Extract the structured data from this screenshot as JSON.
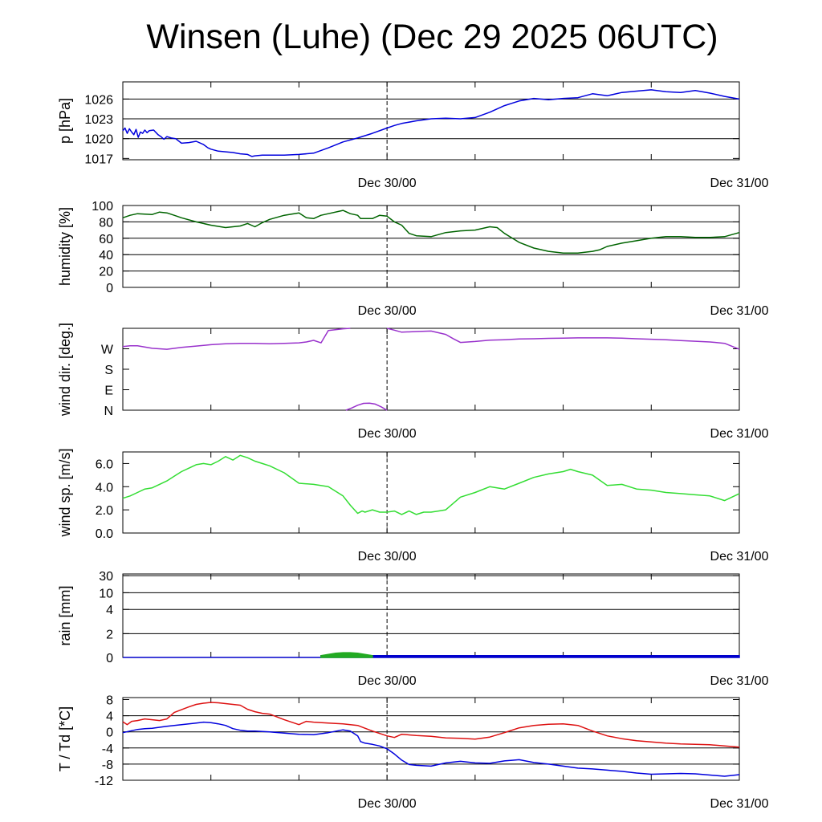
{
  "title": "Winsen (Luhe) (Dec 29 2025 06UTC)",
  "x_axis": {
    "start": "Dec 29 06UTC",
    "end": "Dec 31 00UTC",
    "range_hours": [
      0,
      42
    ],
    "tick_hours": [
      0,
      6,
      12,
      18,
      24,
      30,
      36,
      42
    ],
    "labels": [
      {
        "hour": 18,
        "text": "Dec 30/00"
      },
      {
        "hour": 42,
        "text": "Dec 31/00"
      }
    ],
    "marker_hour": 18
  },
  "chart_data": [
    {
      "type": "line",
      "id": "pressure",
      "ylabel": "p [hPa]",
      "ylim": [
        1016.8,
        1028.6
      ],
      "yticks": [
        1017,
        1020,
        1023,
        1026
      ],
      "ytick_labels": [
        "1017",
        "1020",
        "1023",
        "1026"
      ],
      "gridlines": [
        1020,
        1023,
        1026
      ],
      "series": [
        {
          "color": "#0000dd",
          "x": [
            0,
            0.15,
            0.3,
            0.45,
            0.6,
            0.75,
            0.9,
            1.05,
            1.2,
            1.35,
            1.5,
            1.65,
            1.8,
            2.1,
            2.4,
            2.6,
            2.8,
            3,
            3.3,
            3.6,
            4,
            4.5,
            5,
            5.5,
            5.8,
            6,
            6.5,
            7,
            7.5,
            8,
            8.5,
            8.8,
            9,
            9.5,
            10,
            11,
            12,
            13,
            14,
            15,
            16,
            17,
            18,
            18.5,
            19,
            20,
            21,
            22,
            23,
            24,
            25,
            26,
            27,
            28,
            29,
            30,
            31,
            32,
            33,
            34,
            35,
            36,
            37,
            38,
            39,
            40,
            41,
            42
          ],
          "y": [
            1021.2,
            1021.6,
            1020.8,
            1021.5,
            1021.0,
            1020.6,
            1021.4,
            1020.2,
            1021.0,
            1020.8,
            1021.3,
            1020.9,
            1021.2,
            1021.3,
            1020.6,
            1020.3,
            1019.9,
            1020.3,
            1020.1,
            1020.0,
            1019.3,
            1019.4,
            1019.6,
            1019.1,
            1018.6,
            1018.4,
            1018.1,
            1018.0,
            1017.9,
            1017.7,
            1017.6,
            1017.3,
            1017.4,
            1017.5,
            1017.5,
            1017.5,
            1017.6,
            1017.8,
            1018.6,
            1019.5,
            1020.1,
            1020.8,
            1021.6,
            1022.0,
            1022.3,
            1022.7,
            1023.0,
            1023.1,
            1023.0,
            1023.2,
            1024.0,
            1025.0,
            1025.7,
            1026.1,
            1025.9,
            1026.1,
            1026.2,
            1026.8,
            1026.5,
            1027.0,
            1027.2,
            1027.4,
            1027.1,
            1027.0,
            1027.3,
            1026.9,
            1026.4,
            1026.0
          ]
        }
      ]
    },
    {
      "type": "line",
      "id": "humidity",
      "ylabel": "humidity [%]",
      "ylim": [
        0,
        100
      ],
      "yticks": [
        0,
        20,
        40,
        60,
        80,
        100
      ],
      "ytick_labels": [
        "0",
        "20",
        "40",
        "60",
        "80",
        "100"
      ],
      "gridlines": [
        20,
        40,
        60,
        80
      ],
      "series": [
        {
          "color": "#006400",
          "x": [
            0,
            0.5,
            1,
            2,
            2.5,
            3,
            3.5,
            4,
            5,
            6,
            7,
            8,
            8.5,
            9,
            9.5,
            10,
            11,
            12,
            12.5,
            13,
            13.5,
            14,
            15,
            15.5,
            16,
            16.2,
            16.5,
            17,
            17.5,
            18,
            18.5,
            19,
            19.5,
            20,
            21,
            22,
            23,
            24,
            25,
            25.5,
            26,
            27,
            28,
            29,
            30,
            31,
            32,
            32.5,
            33,
            34,
            35,
            36,
            37,
            38,
            39,
            40,
            41,
            42
          ],
          "y": [
            85,
            88,
            90,
            89,
            92,
            91,
            88,
            85,
            80,
            76,
            73,
            75,
            78,
            74,
            79,
            83,
            88,
            91,
            85,
            84,
            88,
            90,
            94,
            90,
            88,
            84,
            84,
            84,
            88,
            87,
            80,
            76,
            66,
            63,
            62,
            67,
            69,
            70,
            74,
            73,
            66,
            55,
            48,
            44,
            42,
            42,
            44,
            46,
            50,
            54,
            57,
            60,
            62,
            62,
            61,
            61,
            62,
            67
          ]
        }
      ]
    },
    {
      "type": "line",
      "id": "wind_direction",
      "ylabel": "wind dir. [deg.]",
      "ylim": [
        0,
        360
      ],
      "yticks": [
        0,
        90,
        180,
        270
      ],
      "ytick_labels": [
        "N",
        "E",
        "S",
        "W"
      ],
      "gridlines": [],
      "series": [
        {
          "color": "#9932cc",
          "x": [
            0,
            0.5,
            1,
            2,
            2.5,
            3,
            4,
            5,
            6,
            7,
            8,
            9,
            10,
            11,
            12,
            12.5,
            13,
            13.5,
            14,
            15,
            15.5
          ],
          "y": [
            280,
            283,
            283,
            272,
            270,
            268,
            276,
            282,
            288,
            292,
            294,
            294,
            292,
            294,
            296,
            300,
            307,
            296,
            350,
            358,
            360
          ]
        },
        {
          "color": "#9932cc",
          "x": [
            15.2,
            15.6,
            16,
            16.4,
            16.8,
            17.2,
            17.6,
            18
          ],
          "y": [
            0,
            10,
            22,
            30,
            31,
            27,
            15,
            0
          ]
        },
        {
          "color": "#9932cc",
          "x": [
            18,
            18.5,
            19,
            20,
            21,
            22,
            22.5,
            23,
            24,
            25,
            26,
            27,
            28,
            29,
            30,
            31,
            32,
            33,
            34,
            35,
            36,
            37,
            38,
            39,
            40,
            41,
            42
          ],
          "y": [
            360,
            352,
            343,
            346,
            348,
            333,
            315,
            298,
            302,
            308,
            310,
            313,
            314,
            316,
            317,
            318,
            318,
            318,
            317,
            314,
            312,
            310,
            306,
            303,
            300,
            294,
            268
          ]
        }
      ]
    },
    {
      "type": "line",
      "id": "wind_speed",
      "ylabel": "wind sp. [m/s]",
      "ylim": [
        0,
        7
      ],
      "yticks": [
        0,
        2,
        4,
        6
      ],
      "ytick_labels": [
        "0.0",
        "2.0",
        "4.0",
        "6.0"
      ],
      "gridlines": [],
      "series": [
        {
          "color": "#33dd33",
          "x": [
            0,
            0.5,
            1,
            1.5,
            2,
            2.5,
            3,
            3.5,
            4,
            4.5,
            5,
            5.5,
            6,
            6.5,
            7,
            7.5,
            8,
            8.5,
            9,
            9.5,
            10,
            11,
            12,
            13,
            14,
            15,
            15.5,
            16,
            16.3,
            16.5,
            17,
            17.5,
            18,
            18.5,
            19,
            19.5,
            20,
            20.5,
            21,
            21.5,
            22,
            23,
            24,
            25,
            26,
            27,
            28,
            29,
            30,
            30.5,
            31,
            32,
            33,
            34,
            35,
            36,
            37,
            38,
            39,
            40,
            41,
            42
          ],
          "y": [
            3.0,
            3.2,
            3.5,
            3.8,
            3.9,
            4.2,
            4.5,
            4.9,
            5.3,
            5.6,
            5.9,
            6.0,
            5.9,
            6.2,
            6.6,
            6.3,
            6.7,
            6.5,
            6.2,
            6.0,
            5.8,
            5.2,
            4.3,
            4.2,
            4.0,
            3.2,
            2.4,
            1.7,
            1.9,
            1.8,
            2.0,
            1.8,
            1.8,
            1.9,
            1.6,
            1.9,
            1.6,
            1.8,
            1.8,
            1.9,
            2.0,
            3.1,
            3.5,
            4.0,
            3.8,
            4.3,
            4.8,
            5.1,
            5.3,
            5.5,
            5.3,
            5.0,
            4.1,
            4.2,
            3.8,
            3.7,
            3.5,
            3.4,
            3.3,
            3.2,
            2.8,
            3.4
          ]
        }
      ]
    },
    {
      "type": "area",
      "id": "rain",
      "ylabel": "rain [mm]",
      "yscale": "nonlinear",
      "ylim": [
        0,
        40
      ],
      "yticks": [
        0,
        2,
        4,
        10,
        30
      ],
      "ytick_labels": [
        "0",
        "2",
        "4",
        "10",
        "30"
      ],
      "gridlines": [
        2,
        4,
        10,
        30
      ],
      "series": [
        {
          "color": "#0000cc",
          "x": [
            0,
            13.5,
            13.5,
            42
          ],
          "y": [
            0,
            0,
            0.15,
            0.15
          ]
        },
        {
          "color": "#22aa22",
          "x": [
            13.5,
            14,
            14.5,
            15,
            15.5,
            16,
            16.5,
            17
          ],
          "y": [
            0.15,
            0.25,
            0.35,
            0.4,
            0.4,
            0.35,
            0.25,
            0.15
          ]
        }
      ]
    },
    {
      "type": "line",
      "id": "temperature",
      "ylabel": "T / Td [*C]",
      "ylim": [
        -12,
        8.5
      ],
      "yticks": [
        -12,
        -8,
        -4,
        0,
        4,
        8
      ],
      "ytick_labels": [
        "-12",
        "-8",
        "-4",
        "0",
        "4",
        "8"
      ],
      "gridlines": [
        -8,
        -4,
        0,
        4
      ],
      "series": [
        {
          "color": "#dd1111",
          "x": [
            0,
            0.3,
            0.6,
            1,
            1.5,
            2,
            2.5,
            3,
            3.5,
            4,
            4.5,
            5,
            5.5,
            6,
            6.5,
            7,
            7.5,
            8,
            8.5,
            9,
            9.5,
            10,
            11,
            12,
            12.5,
            13,
            14,
            15,
            16,
            16.5,
            17,
            17.5,
            18,
            18.5,
            19,
            20,
            21,
            22,
            23,
            24,
            25,
            26,
            27,
            28,
            29,
            30,
            31,
            32,
            32.5,
            33,
            34,
            35,
            36,
            37,
            38,
            39,
            40,
            41,
            42
          ],
          "y": [
            2.5,
            1.8,
            2.6,
            2.8,
            3.2,
            3.0,
            2.8,
            3.2,
            4.8,
            5.5,
            6.2,
            6.8,
            7.1,
            7.3,
            7.2,
            7.0,
            6.8,
            6.6,
            5.6,
            5.0,
            4.6,
            4.4,
            3.0,
            1.8,
            2.6,
            2.4,
            2.2,
            2.0,
            1.6,
            0.9,
            0.2,
            -0.4,
            -1.0,
            -1.4,
            -0.6,
            -0.9,
            -1.1,
            -1.5,
            -1.6,
            -1.8,
            -1.3,
            -0.2,
            1.0,
            1.6,
            1.9,
            2.0,
            1.6,
            0.2,
            -0.4,
            -1.0,
            -1.7,
            -2.2,
            -2.5,
            -2.8,
            -3.0,
            -3.1,
            -3.2,
            -3.5,
            -3.8
          ]
        },
        {
          "color": "#0000dd",
          "x": [
            0,
            0.5,
            1,
            1.5,
            2,
            3,
            4,
            5,
            5.5,
            6,
            6.5,
            7,
            7.5,
            8,
            8.5,
            9,
            10,
            11,
            12,
            13,
            14,
            15,
            15.5,
            16,
            16.2,
            16.5,
            17,
            17.5,
            18,
            18.5,
            19,
            19.5,
            20,
            21,
            22,
            23,
            24,
            25,
            26,
            27,
            28,
            29,
            30,
            31,
            32,
            33,
            34,
            35,
            36,
            37,
            38,
            39,
            40,
            41,
            42
          ],
          "y": [
            -0.2,
            0.2,
            0.6,
            0.8,
            0.9,
            1.4,
            1.8,
            2.2,
            2.4,
            2.3,
            2.0,
            1.6,
            0.8,
            0.4,
            0.2,
            0.2,
            0.0,
            -0.3,
            -0.6,
            -0.7,
            -0.2,
            0.5,
            0.2,
            -1.0,
            -2.4,
            -2.8,
            -3.1,
            -3.5,
            -4.2,
            -5.5,
            -7.0,
            -8.1,
            -8.3,
            -8.5,
            -7.7,
            -7.3,
            -7.7,
            -7.8,
            -7.2,
            -6.9,
            -7.6,
            -8.0,
            -8.5,
            -9.0,
            -9.2,
            -9.5,
            -9.8,
            -10.2,
            -10.5,
            -10.4,
            -10.3,
            -10.4,
            -10.7,
            -11.0,
            -10.6
          ]
        }
      ]
    }
  ]
}
